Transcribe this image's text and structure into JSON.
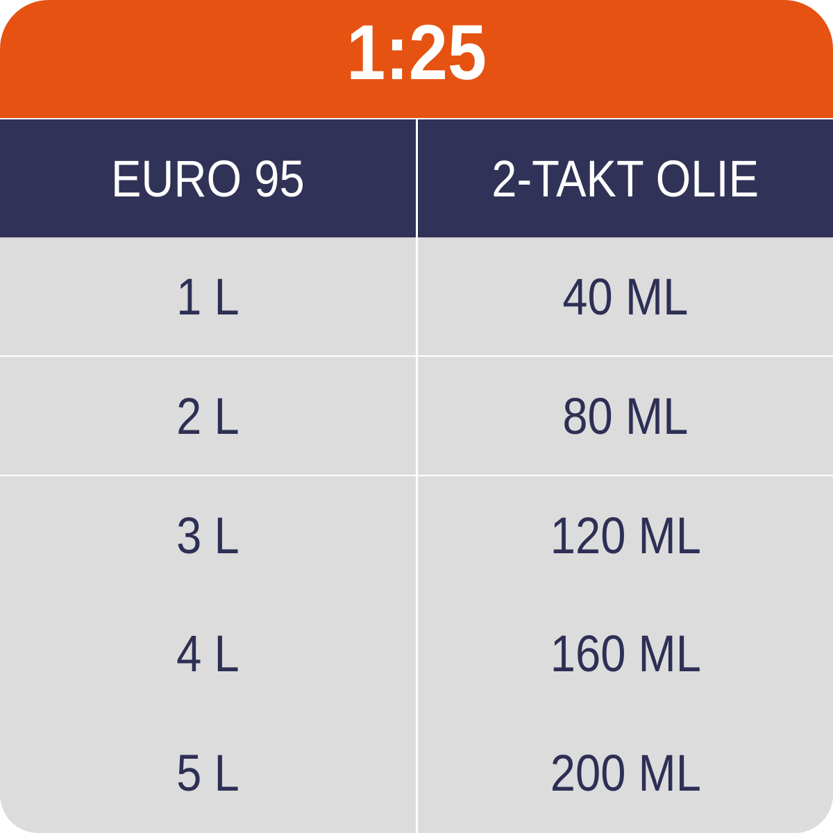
{
  "title": "1:25",
  "headers": [
    "EURO 95",
    "2-TAKT OLIE"
  ],
  "rows": [
    [
      "1 L",
      "40 ML"
    ],
    [
      "2 L",
      "80 ML"
    ],
    [
      "3 L",
      "120 ML"
    ],
    [
      "4 L",
      "160 ML"
    ],
    [
      "5 L",
      "200 ML"
    ]
  ],
  "colors": {
    "title_bg": "#E65212",
    "header_bg": "#313257",
    "row_bg": "#DCDCDC",
    "text": "#2E2F55"
  }
}
